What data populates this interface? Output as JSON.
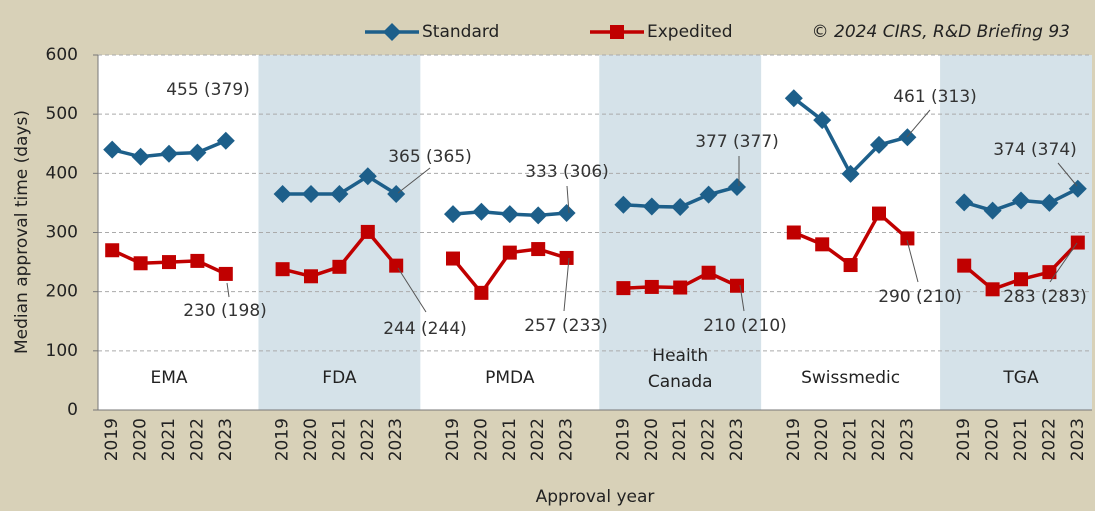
{
  "chart_data": {
    "type": "line",
    "y_label": "Median approval time (days)",
    "x_label": "Approval year",
    "source": "© 2024 CIRS, R&D Briefing 93",
    "categories": [
      "2019",
      "2020",
      "2021",
      "2022",
      "2023",
      null,
      "2019",
      "2020",
      "2021",
      "2022",
      "2023",
      null,
      "2019",
      "2020",
      "2021",
      "2022",
      "2023",
      null,
      "2019",
      "2020",
      "2021",
      "2022",
      "2023",
      null,
      "2019",
      "2020",
      "2021",
      "2022",
      "2023",
      null,
      "2019",
      "2020",
      "2021",
      "2022",
      "2023"
    ],
    "groups": [
      "EMA",
      "FDA",
      "PMDA",
      "Health Canada",
      "Swissmedic",
      "TGA"
    ],
    "series": [
      {
        "name": "Standard",
        "color": "#1d5f8a",
        "marker": "diamond",
        "values": [
          440,
          428,
          433,
          435,
          455,
          null,
          365,
          365,
          365,
          395,
          365,
          null,
          331,
          335,
          331,
          329,
          333,
          null,
          347,
          344,
          343,
          364,
          377,
          null,
          527,
          490,
          399,
          448,
          461,
          null,
          351,
          337,
          354,
          350,
          374
        ]
      },
      {
        "name": "Expedited",
        "color": "#c00000",
        "marker": "square",
        "values": [
          270,
          248,
          250,
          252,
          230,
          null,
          238,
          226,
          242,
          301,
          244,
          null,
          256,
          198,
          266,
          272,
          257,
          null,
          206,
          208,
          207,
          232,
          210,
          null,
          300,
          280,
          245,
          332,
          290,
          null,
          244,
          204,
          221,
          233,
          283
        ]
      }
    ],
    "annotations": [
      "455 (379)",
      "230 (198)",
      "365 (365)",
      "244 (244)",
      "333 (306)",
      "257 (233)",
      "377 (377)",
      "210 (210)",
      "461 (313)",
      "290 (210)",
      "374 (374)",
      "283 (283)"
    ],
    "ylim": [
      0,
      600
    ],
    "yticks": [
      0,
      100,
      200,
      300,
      400,
      500,
      600
    ],
    "grid": true
  }
}
